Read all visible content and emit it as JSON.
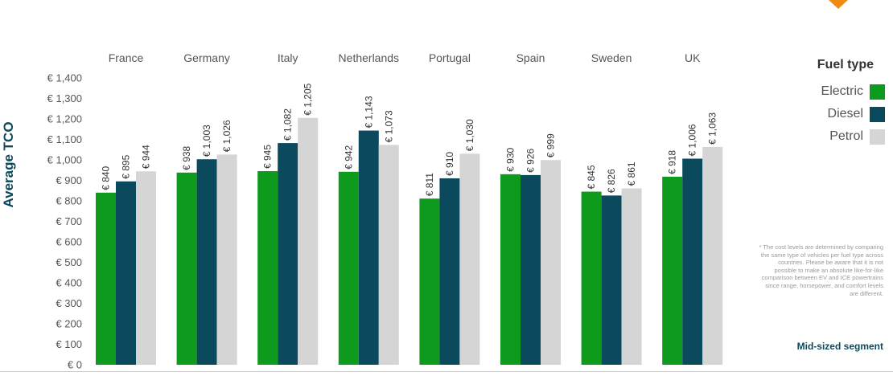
{
  "chart_data": {
    "type": "bar",
    "categories": [
      "France",
      "Germany",
      "Italy",
      "Netherlands",
      "Portugal",
      "Spain",
      "Sweden",
      "UK"
    ],
    "series": [
      {
        "name": "Electric",
        "color": "#0e9a1c",
        "values": [
          840,
          938,
          945,
          942,
          811,
          930,
          845,
          918
        ],
        "labels": [
          "€ 840",
          "€ 938",
          "€ 945",
          "€ 942",
          "€ 811",
          "€ 930",
          "€ 845",
          "€ 918"
        ]
      },
      {
        "name": "Diesel",
        "color": "#0b4a5c",
        "values": [
          895,
          1003,
          1082,
          1143,
          910,
          926,
          826,
          1006
        ],
        "labels": [
          "€ 895",
          "€ 1,003",
          "€ 1,082",
          "€ 1,143",
          "€ 910",
          "€ 926",
          "€ 826",
          "€ 1,006"
        ]
      },
      {
        "name": "Petrol",
        "color": "#d5d5d5",
        "values": [
          944,
          1026,
          1205,
          1073,
          1030,
          999,
          861,
          1063
        ],
        "labels": [
          "€ 944",
          "€ 1,026",
          "€ 1,205",
          "€ 1,073",
          "€ 1,030",
          "€ 999",
          "€ 861",
          "€ 1,063"
        ]
      }
    ],
    "ylabel": "Average TCO",
    "xlabel": "",
    "ylim": [
      0,
      1400
    ],
    "yticks": [
      0,
      100,
      200,
      300,
      400,
      500,
      600,
      700,
      800,
      900,
      1000,
      1100,
      1200,
      1300,
      1400
    ],
    "ytick_labels": [
      "€ 0",
      "€ 100",
      "€ 200",
      "€ 300",
      "€ 400",
      "€ 500",
      "€ 600",
      "€ 700",
      "€ 800",
      "€ 900",
      "€ 1,000",
      "€ 1,100",
      "€ 1,200",
      "€ 1,300",
      "€ 1,400"
    ],
    "grid": false,
    "legend": {
      "title": "Fuel type",
      "placement": "right"
    }
  },
  "footnote": "* The cost levels are determined by comparing the same type of vehicles per fuel type across countries. Please be aware that it is not possible to make an absolute like-for-like comparison between EV and ICE powertrains since range, horsepower, and comfort levels are different.",
  "segment_label": "Mid-sized segment",
  "colors": {
    "accent": "#0b4a5c",
    "orange_mark": "#f08a14"
  }
}
